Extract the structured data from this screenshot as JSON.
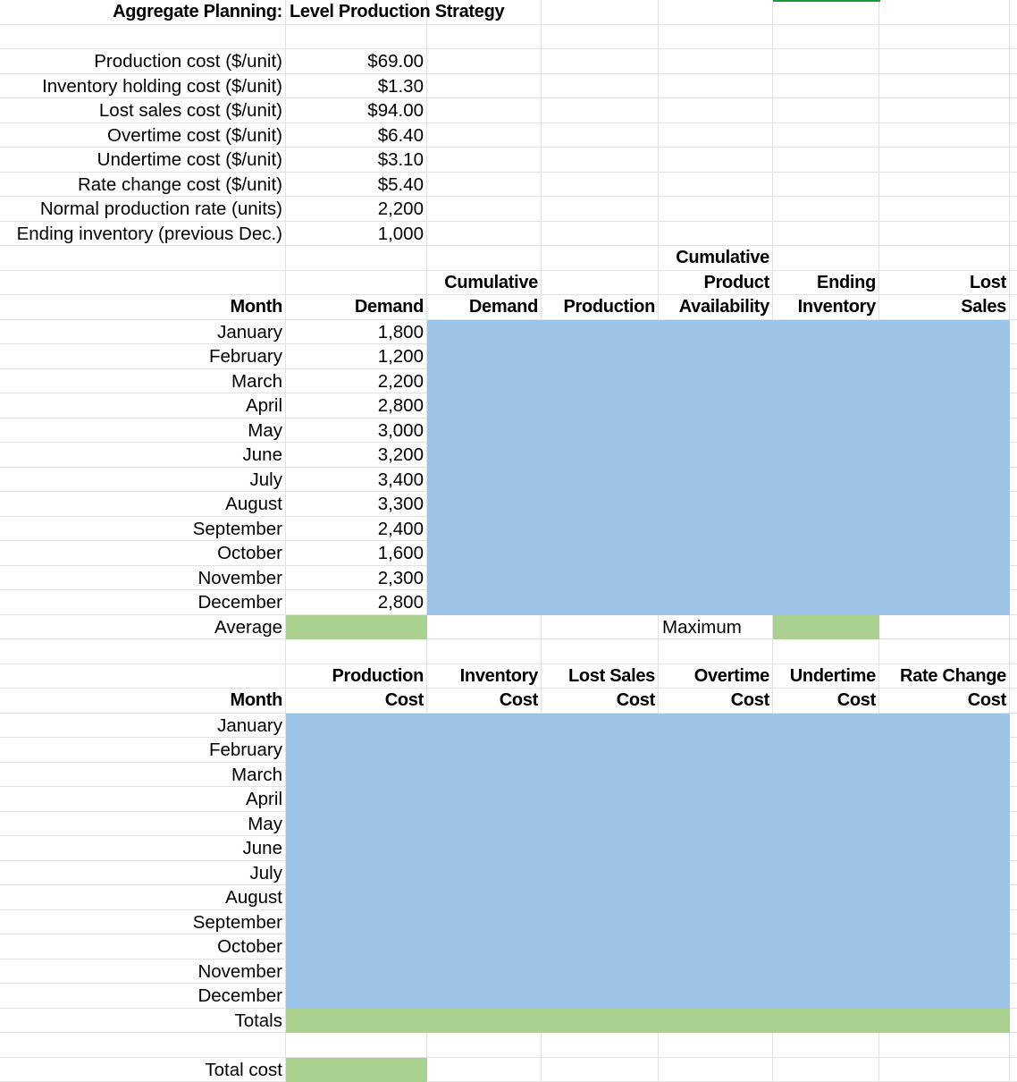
{
  "title": [
    "Aggregate Planning:",
    "Level Production Strategy"
  ],
  "parameters": [
    {
      "label": "Production cost ($/unit)",
      "value": "$69.00"
    },
    {
      "label": "Inventory holding cost ($/unit)",
      "value": "$1.30"
    },
    {
      "label": "Lost sales cost ($/unit)",
      "value": "$94.00"
    },
    {
      "label": "Overtime cost ($/unit)",
      "value": "$6.40"
    },
    {
      "label": "Undertime cost ($/unit)",
      "value": "$3.10"
    },
    {
      "label": "Rate change cost ($/unit)",
      "value": "$5.40"
    },
    {
      "label": "Normal production rate (units)",
      "value": "2,200"
    },
    {
      "label": "Ending inventory (previous Dec.)",
      "value": "1,000"
    }
  ],
  "production_table": {
    "headers": [
      [
        "Month"
      ],
      [
        "Demand"
      ],
      [
        "Cumulative",
        "Demand"
      ],
      [
        "Production"
      ],
      [
        "Cumulative",
        "Product",
        "Availability"
      ],
      [
        "Ending",
        "Inventory"
      ],
      [
        "Lost",
        "Sales"
      ]
    ],
    "rows": [
      {
        "month": "January",
        "demand": "1,800"
      },
      {
        "month": "February",
        "demand": "1,200"
      },
      {
        "month": "March",
        "demand": "2,200"
      },
      {
        "month": "April",
        "demand": "2,800"
      },
      {
        "month": "May",
        "demand": "3,000"
      },
      {
        "month": "June",
        "demand": "3,200"
      },
      {
        "month": "July",
        "demand": "3,400"
      },
      {
        "month": "August",
        "demand": "3,300"
      },
      {
        "month": "September",
        "demand": "2,400"
      },
      {
        "month": "October",
        "demand": "1,600"
      },
      {
        "month": "November",
        "demand": "2,300"
      },
      {
        "month": "December",
        "demand": "2,800"
      }
    ],
    "average_label": "Average",
    "maximum_label": "Maximum"
  },
  "cost_table": {
    "headers": [
      [
        "Month"
      ],
      [
        "Production",
        "Cost"
      ],
      [
        "Inventory",
        "Cost"
      ],
      [
        "Lost Sales",
        "Cost"
      ],
      [
        "Overtime",
        "Cost"
      ],
      [
        "Undertime",
        "Cost"
      ],
      [
        "Rate Change",
        "Cost"
      ]
    ],
    "months": [
      "January",
      "February",
      "March",
      "April",
      "May",
      "June",
      "July",
      "August",
      "September",
      "October",
      "November",
      "December"
    ],
    "totals_label": "Totals"
  },
  "total_cost_label": "Total cost"
}
